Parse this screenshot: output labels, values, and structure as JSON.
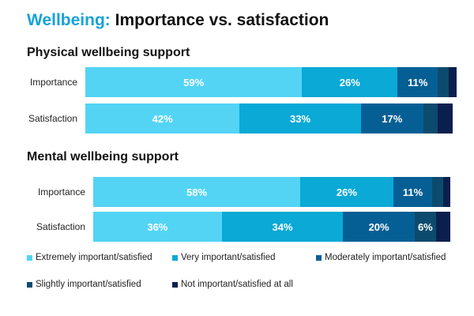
{
  "title": {
    "accent": "Wellbeing:",
    "rest": " Importance vs. satisfaction"
  },
  "colors": {
    "extremely": "#53d4f5",
    "very": "#0aa9d6",
    "moderately": "#065f94",
    "slightly": "#0c4b6e",
    "not": "#0b1f4f"
  },
  "legend": [
    {
      "label": "Extremely important/satisfied",
      "color_key": "extremely"
    },
    {
      "label": "Very important/satisfied",
      "color_key": "very"
    },
    {
      "label": "Moderately important/satisfied",
      "color_key": "moderately"
    },
    {
      "label": "Slightly important/satisfied",
      "color_key": "slightly"
    },
    {
      "label": "Not important/satisfied at all",
      "color_key": "not"
    }
  ],
  "chart_data": [
    {
      "type": "bar",
      "orientation": "horizontal",
      "stacked": true,
      "title": "Physical wellbeing support",
      "categories": [
        "Importance",
        "Satisfaction"
      ],
      "series": [
        {
          "name": "Extremely important/satisfied",
          "values": [
            59,
            42
          ],
          "labels": [
            "59%",
            "42%"
          ]
        },
        {
          "name": "Very important/satisfied",
          "values": [
            26,
            33
          ],
          "labels": [
            "26%",
            "33%"
          ]
        },
        {
          "name": "Moderately important/satisfied",
          "values": [
            11,
            17
          ],
          "labels": [
            "11%",
            "17%"
          ]
        },
        {
          "name": "Slightly important/satisfied",
          "values": [
            3,
            4
          ],
          "labels": [
            "",
            ""
          ]
        },
        {
          "name": "Not important/satisfied at all",
          "values": [
            2,
            4
          ],
          "labels": [
            "",
            ""
          ]
        }
      ],
      "xlim": [
        0,
        100
      ]
    },
    {
      "type": "bar",
      "orientation": "horizontal",
      "stacked": true,
      "title": "Mental wellbeing support",
      "categories": [
        "Importance",
        "Satisfaction"
      ],
      "series": [
        {
          "name": "Extremely important/satisfied",
          "values": [
            58,
            36
          ],
          "labels": [
            "58%",
            "36%"
          ]
        },
        {
          "name": "Very important/satisfied",
          "values": [
            26,
            34
          ],
          "labels": [
            "26%",
            "34%"
          ]
        },
        {
          "name": "Moderately important/satisfied",
          "values": [
            11,
            20
          ],
          "labels": [
            "11%",
            "20%"
          ]
        },
        {
          "name": "Slightly important/satisfied",
          "values": [
            3,
            6
          ],
          "labels": [
            "",
            "6%"
          ]
        },
        {
          "name": "Not important/satisfied at all",
          "values": [
            2,
            4
          ],
          "labels": [
            "",
            ""
          ]
        }
      ],
      "xlim": [
        0,
        100
      ]
    }
  ]
}
